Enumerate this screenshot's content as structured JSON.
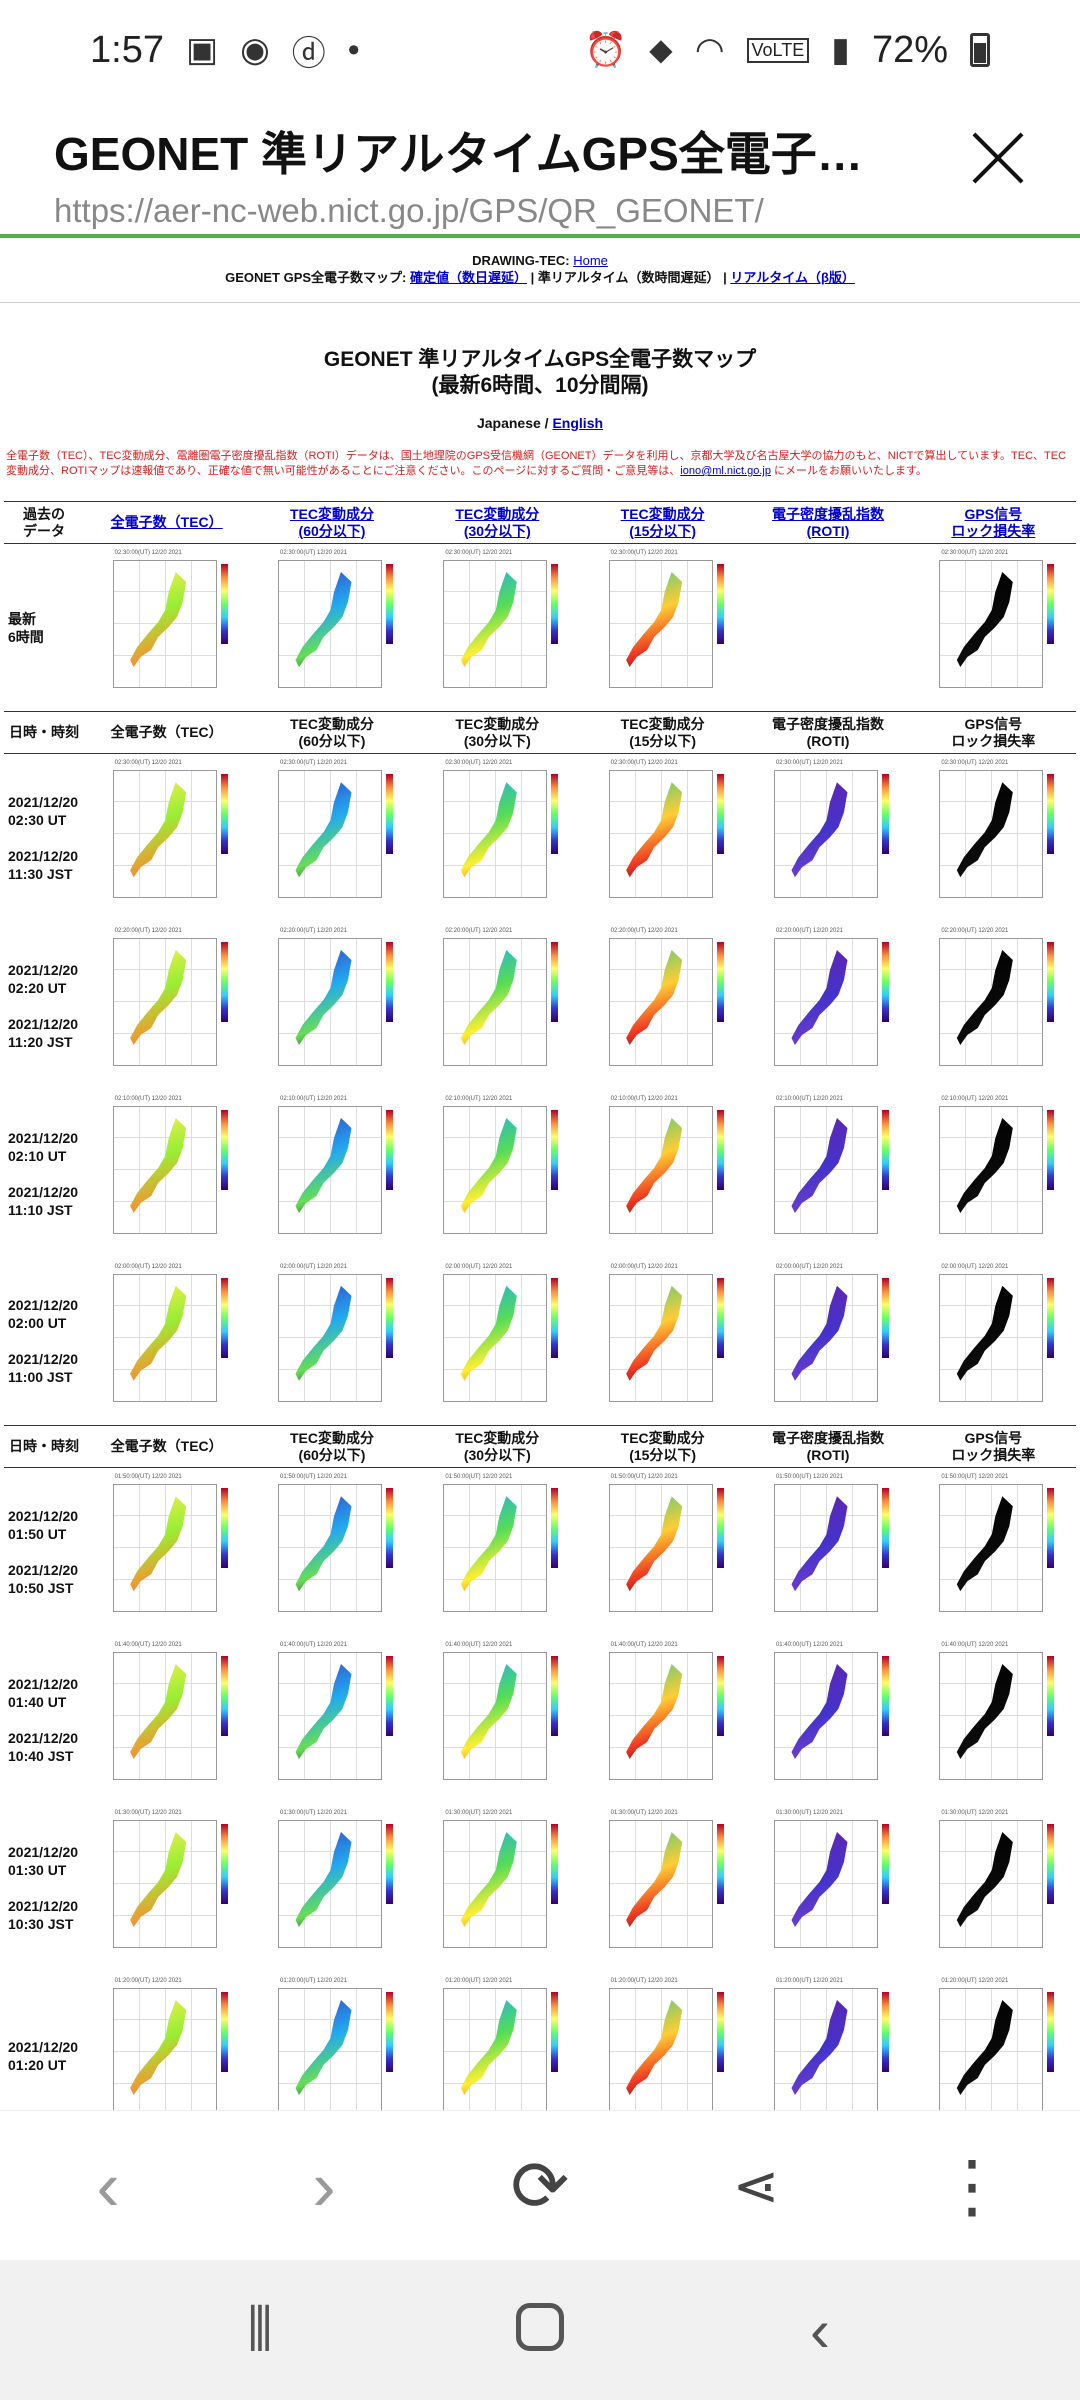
{
  "status": {
    "time": "1:57",
    "battery": "72%",
    "volte": "VoLTE"
  },
  "tab": {
    "title": "GEONET 準リアルタイムGPS全電子数マ…",
    "url": "https://aer-nc-web.nict.go.jp/GPS/QR_GEONET/"
  },
  "nav": {
    "drawing": "DRAWING-TEC: ",
    "home": "Home",
    "line2_prefix": "GEONET GPS全電子数マップ: ",
    "confirmed": "確定値（数日遅延）",
    "sep1": " | 準リアルタイム（数時間遅延） | ",
    "realtime": "リアルタイム（β版）"
  },
  "main": {
    "title1": "GEONET 準リアルタイムGPS全電子数マップ",
    "title2": "(最新6時間、10分間隔)",
    "lang_ja": "Japanese / ",
    "lang_en": "English",
    "notice": "全電子数（TEC）、TEC変動成分、電離圏電子密度擾乱指数（ROTI）データは、国土地理院のGPS受信機網（GEONET）データを利用し、京都大学及び名古屋大学の協力のもと、NICTで算出しています。TEC、TEC変動成分、ROTIマップは速報値であり、正確な値で無い可能性があることにご注意ください。このページに対するご質問・ご意見等は、",
    "email": "iono@ml.nict.go.jp",
    "notice_end": " にメールをお願いいたします。"
  },
  "header_top": {
    "c0": "過去の\nデータ",
    "c1": "全電子数（TEC）",
    "c2": "TEC変動成分\n(60分以下)",
    "c3": "TEC変動成分\n(30分以下)",
    "c4": "TEC変動成分\n(15分以下)",
    "c5": "電子密度擾乱指数\n(ROTI)",
    "c6": "GPS信号\nロック損失率"
  },
  "latest_label": "最新\n6時間",
  "header_mid": {
    "c0": "日時・時刻",
    "c1": "全電子数（TEC）",
    "c2": "TEC変動成分\n(60分以下)",
    "c3": "TEC変動成分\n(30分以下)",
    "c4": "TEC変動成分\n(15分以下)",
    "c5": "電子密度擾乱指数\n(ROTI)",
    "c6": "GPS信号\nロック損失率"
  },
  "rows": [
    {
      "date": "2021/12/20",
      "ut": "02:30 UT",
      "jst": "11:30 JST",
      "cap": "02:30:00(UT) 12/20 2021"
    },
    {
      "date": "2021/12/20",
      "ut": "02:20 UT",
      "jst": "11:20 JST",
      "cap": "02:20:00(UT) 12/20 2021"
    },
    {
      "date": "2021/12/20",
      "ut": "02:10 UT",
      "jst": "11:10 JST",
      "cap": "02:10:00(UT) 12/20 2021"
    },
    {
      "date": "2021/12/20",
      "ut": "02:00 UT",
      "jst": "11:00 JST",
      "cap": "02:00:00(UT) 12/20 2021"
    },
    {
      "date": "2021/12/20",
      "ut": "01:50 UT",
      "jst": "10:50 JST",
      "cap": "01:50:00(UT) 12/20 2021"
    },
    {
      "date": "2021/12/20",
      "ut": "01:40 UT",
      "jst": "10:40 JST",
      "cap": "01:40:00(UT) 12/20 2021"
    },
    {
      "date": "2021/12/20",
      "ut": "01:30 UT",
      "jst": "10:30 JST",
      "cap": "01:30:00(UT) 12/20 2021"
    },
    {
      "date": "2021/12/20",
      "ut": "01:20 UT",
      "jst": "",
      "cap": "01:20:00(UT) 12/20 2021"
    }
  ],
  "colors": {
    "accent_line": "#4cb24c",
    "link": "#0000cc",
    "notice": "#d42020"
  }
}
